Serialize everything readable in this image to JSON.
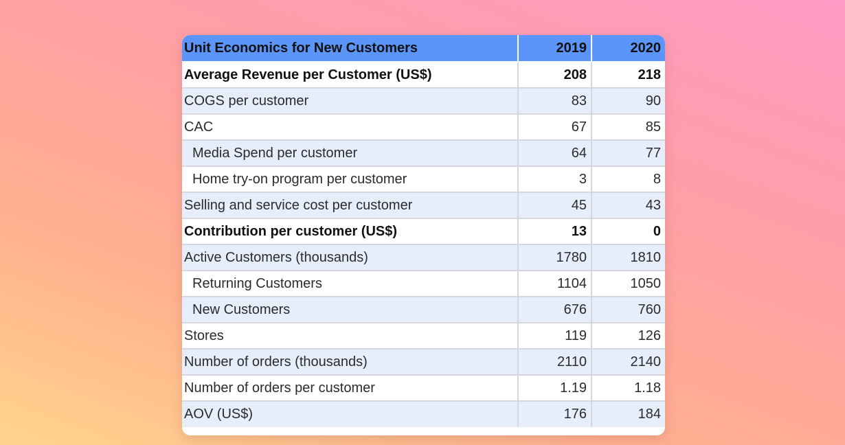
{
  "table": {
    "title": "Unit Economics for New Customers",
    "columns": [
      "2019",
      "2020"
    ],
    "rows": [
      {
        "label": "Average Revenue per Customer (US$)",
        "v2019": "208",
        "v2020": "218"
      },
      {
        "label": "COGS per customer",
        "v2019": "83",
        "v2020": "90"
      },
      {
        "label": "CAC",
        "v2019": "67",
        "v2020": "85"
      },
      {
        "label": "Media Spend per customer",
        "v2019": "64",
        "v2020": "77"
      },
      {
        "label": "Home try-on program per customer",
        "v2019": "3",
        "v2020": "8"
      },
      {
        "label": "Selling and service cost per customer",
        "v2019": "45",
        "v2020": "43"
      },
      {
        "label": "Contribution per customer (US$)",
        "v2019": "13",
        "v2020": "0"
      },
      {
        "label": "Active Customers (thousands)",
        "v2019": "1780",
        "v2020": "1810"
      },
      {
        "label": "Returning Customers",
        "v2019": "1104",
        "v2020": "1050"
      },
      {
        "label": "New Customers",
        "v2019": "676",
        "v2020": "760"
      },
      {
        "label": "Stores",
        "v2019": "119",
        "v2020": "126"
      },
      {
        "label": "Number of orders (thousands)",
        "v2019": "2110",
        "v2020": "2140"
      },
      {
        "label": "Number of orders per customer",
        "v2019": "1.19",
        "v2020": "1.18"
      },
      {
        "label": "AOV (US$)",
        "v2019": "176",
        "v2020": "184"
      }
    ]
  }
}
